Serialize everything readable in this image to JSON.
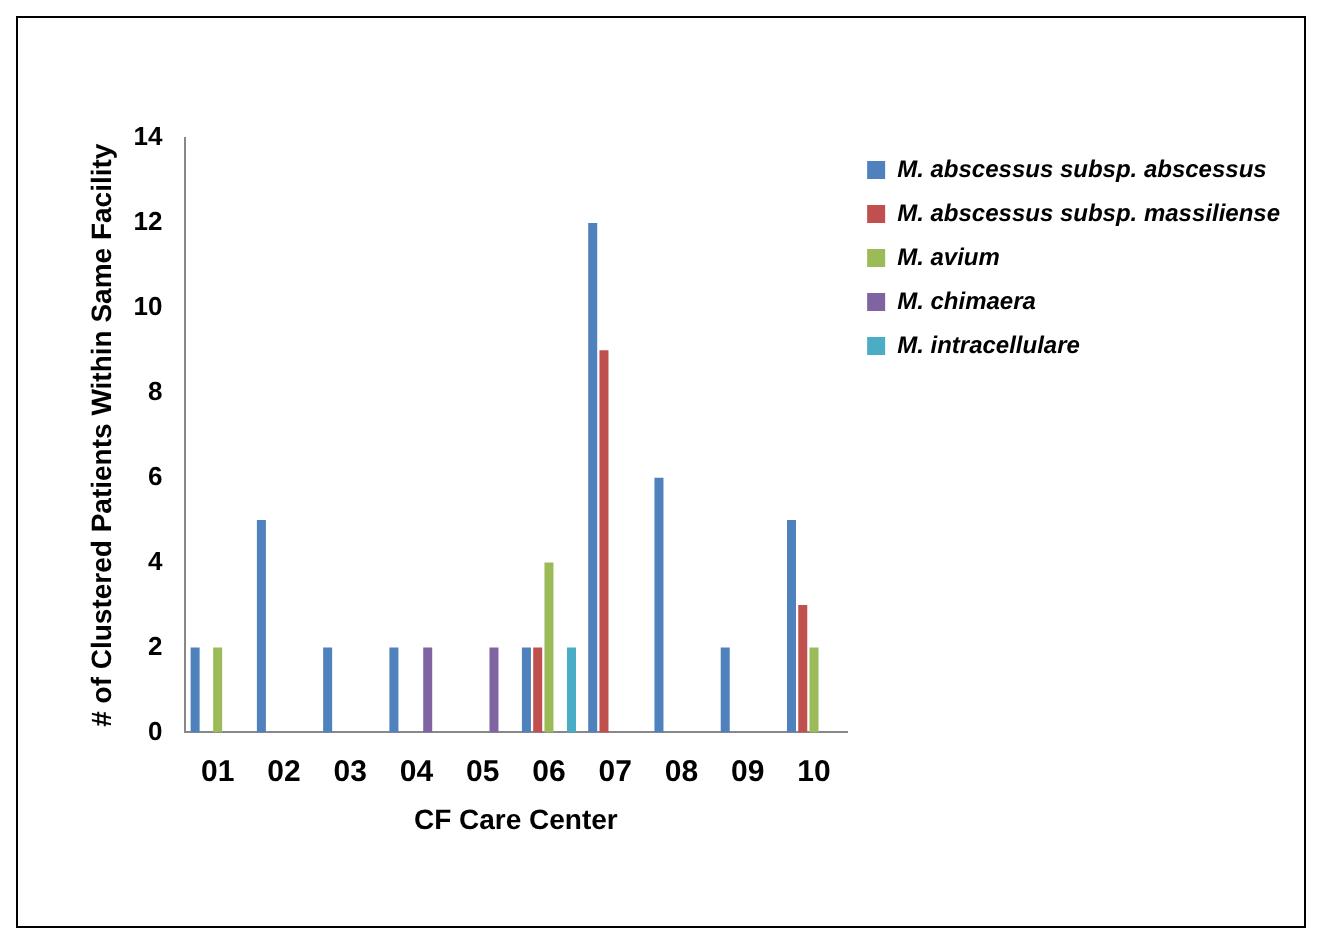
{
  "chart_data": {
    "type": "bar",
    "xlabel": "CF Care Center",
    "ylabel": "# of Clustered Patients Within Same Facility",
    "categories": [
      "01",
      "02",
      "03",
      "04",
      "05",
      "06",
      "07",
      "08",
      "09",
      "10"
    ],
    "series": [
      {
        "name": "M. abscessus subsp. abscessus",
        "color": "#4f81bd",
        "values": [
          2,
          5,
          2,
          2,
          null,
          2,
          12,
          6,
          2,
          5
        ]
      },
      {
        "name": "M. abscessus subsp. massiliense",
        "color": "#c0504d",
        "values": [
          null,
          null,
          null,
          null,
          null,
          2,
          9,
          null,
          null,
          3
        ]
      },
      {
        "name": "M. avium",
        "color": "#9bbb59",
        "values": [
          2,
          null,
          null,
          null,
          null,
          4,
          null,
          null,
          null,
          2
        ]
      },
      {
        "name": "M. chimaera",
        "color": "#8064a2",
        "values": [
          null,
          null,
          null,
          2,
          2,
          null,
          null,
          null,
          null,
          null
        ]
      },
      {
        "name": "M. intracellulare",
        "color": "#4bacc6",
        "values": [
          null,
          null,
          null,
          null,
          null,
          2,
          null,
          null,
          null,
          null
        ]
      }
    ],
    "ylim": [
      0,
      14
    ],
    "yticks": [
      0,
      2,
      4,
      6,
      8,
      10,
      12,
      14
    ],
    "grid": false,
    "legend": "right"
  }
}
